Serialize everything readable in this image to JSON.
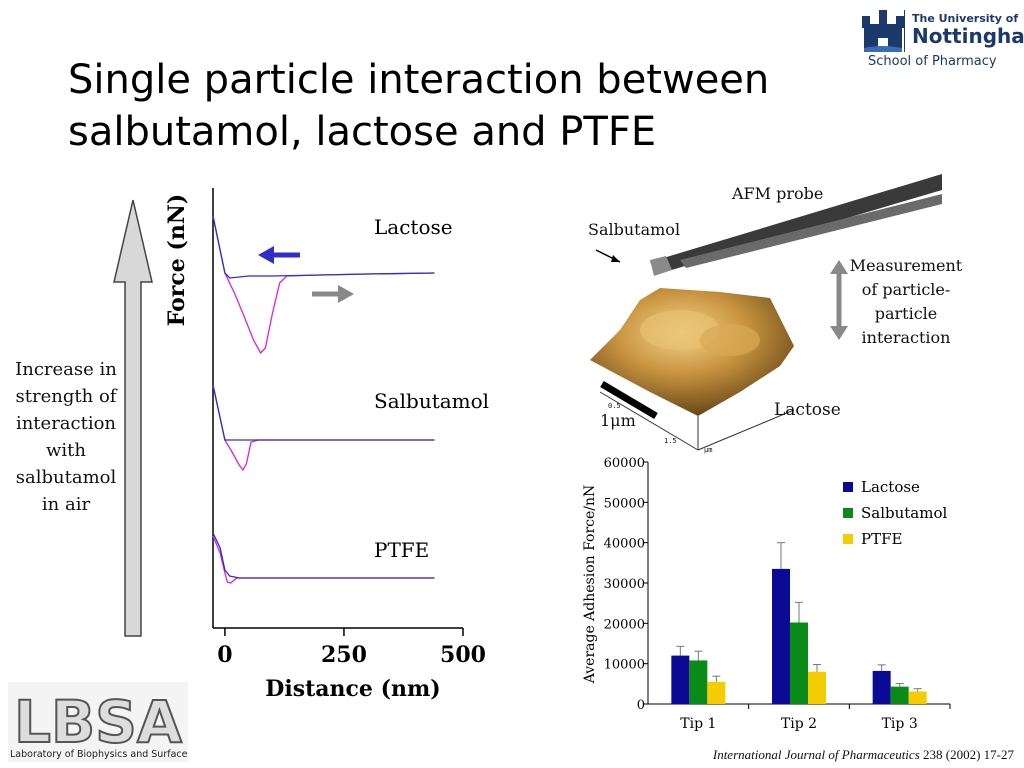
{
  "slide": {
    "title_line1": "Single particle interaction between",
    "title_line2": "salbutamol, lactose and PTFE",
    "logo": {
      "top": "The University of",
      "name": "Nottingham",
      "school": "School of Pharmacy"
    },
    "side_text": [
      "Increase in",
      "strength of",
      "interaction",
      "with",
      "salbutamol",
      "in air"
    ],
    "citation_journal": "International Journal of Pharmaceutics",
    "citation_ref": " 238 (2002) 17-27",
    "lbsa": {
      "big": "LBSA",
      "small": "Laboratory of Biophysics and Surface Analysis"
    }
  },
  "afm_panel": {
    "probe_label": "AFM probe",
    "particle_label": "Salbutamol",
    "measurement_label": [
      "Measurement",
      "of particle-",
      "particle",
      "interaction"
    ],
    "surface_label": "Lactose",
    "scale_label": "1μm",
    "axis_ticks": [
      "0.5",
      "1.5",
      "μm"
    ]
  },
  "colors": {
    "approach": "#2f2fc8",
    "retract": "#e020e0",
    "lactose": "#0a0a96",
    "salbutamol": "#0a8a16",
    "ptfe": "#f5cc00"
  },
  "chart_data": [
    {
      "type": "line",
      "xlabel": "Distance (nm)",
      "ylabel": "Force (nN)",
      "xticks": [
        0,
        250,
        500
      ],
      "xlim": [
        -25,
        500
      ],
      "curves": [
        {
          "label": "Lactose",
          "approach": {
            "x": [
              -25,
              0,
              10,
              50,
              100,
              200,
              300,
              440
            ],
            "y": [
              0.62,
              0.05,
              0.0,
              0.02,
              0.02,
              0.03,
              0.04,
              0.05
            ]
          },
          "retract": {
            "x": [
              -25,
              0,
              20,
              40,
              60,
              75,
              85,
              100,
              115,
              130,
              200,
              300,
              440
            ],
            "y": [
              0.62,
              0.05,
              -0.15,
              -0.38,
              -0.62,
              -0.75,
              -0.7,
              -0.35,
              -0.05,
              0.02,
              0.03,
              0.04,
              0.05
            ]
          }
        },
        {
          "label": "Salbutamol",
          "approach": {
            "x": [
              -25,
              0,
              10,
              50,
              100,
              200,
              300,
              440
            ],
            "y": [
              0.55,
              0.0,
              0.0,
              0.0,
              0.0,
              0.0,
              0.0,
              0.0
            ]
          },
          "retract": {
            "x": [
              -25,
              0,
              15,
              30,
              38,
              45,
              55,
              70,
              200,
              440
            ],
            "y": [
              0.55,
              0.0,
              -0.12,
              -0.25,
              -0.3,
              -0.24,
              -0.02,
              0.0,
              0.0,
              0.0
            ]
          }
        },
        {
          "label": "PTFE",
          "approach": {
            "x": [
              -25,
              -10,
              0,
              10,
              30,
              100,
              440
            ],
            "y": [
              0.45,
              0.3,
              0.08,
              0.02,
              0.0,
              0.0,
              0.0
            ]
          },
          "retract": {
            "x": [
              -25,
              -10,
              0,
              5,
              12,
              25,
              100,
              440
            ],
            "y": [
              0.42,
              0.25,
              0.05,
              -0.04,
              -0.05,
              0.0,
              0.0,
              0.0
            ]
          }
        }
      ]
    },
    {
      "type": "bar",
      "ylabel": "Average Adhesion Force/nN",
      "categories": [
        "Tip 1",
        "Tip 2",
        "Tip 3"
      ],
      "ylim": [
        0,
        60000
      ],
      "yticks": [
        0,
        10000,
        20000,
        30000,
        40000,
        50000,
        60000
      ],
      "series": [
        {
          "name": "Lactose",
          "values": [
            12000,
            33500,
            8200
          ],
          "errors": [
            2300,
            6500,
            1500
          ]
        },
        {
          "name": "Salbutamol",
          "values": [
            10800,
            20200,
            4300
          ],
          "errors": [
            2300,
            5000,
            800
          ]
        },
        {
          "name": "PTFE",
          "values": [
            5500,
            8000,
            3100
          ],
          "errors": [
            1400,
            1800,
            700
          ]
        }
      ],
      "legend_position": "top-right"
    }
  ]
}
